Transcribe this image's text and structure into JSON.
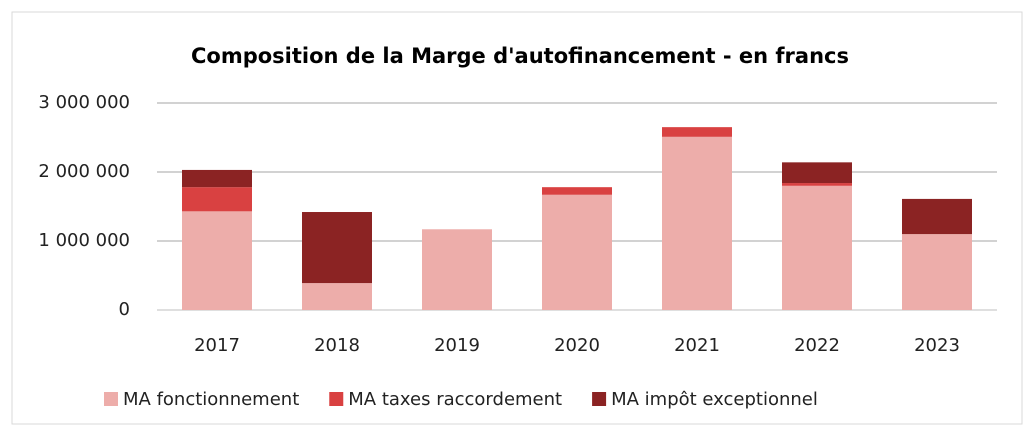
{
  "chart_data": {
    "type": "stacked_bar",
    "title": "Composition de la Marge d'autofinancement - en francs",
    "categories": [
      "2017",
      "2018",
      "2019",
      "2020",
      "2021",
      "2022",
      "2023"
    ],
    "series": [
      {
        "name": "MA fonctionnement",
        "color": "#edadaa",
        "values": [
          1430000,
          390000,
          1170000,
          1670000,
          2510000,
          1800000,
          1100000
        ]
      },
      {
        "name": "MA taxes raccordement",
        "color": "#d94141",
        "values": [
          350000,
          0,
          0,
          110000,
          140000,
          40000,
          0
        ]
      },
      {
        "name": "MA impôt exceptionnel",
        "color": "#8b2323",
        "values": [
          250000,
          1030000,
          0,
          0,
          0,
          300000,
          510000
        ]
      }
    ],
    "ylim": [
      0,
      3000000
    ],
    "yticks": [
      0,
      {
        "value": 1000000,
        "label": "1 000 000"
      },
      {
        "value": 2000000,
        "label": "2 000 000"
      },
      {
        "value": 3000000,
        "label": "3 000 000"
      }
    ],
    "grid": true,
    "legend": "bottom"
  }
}
